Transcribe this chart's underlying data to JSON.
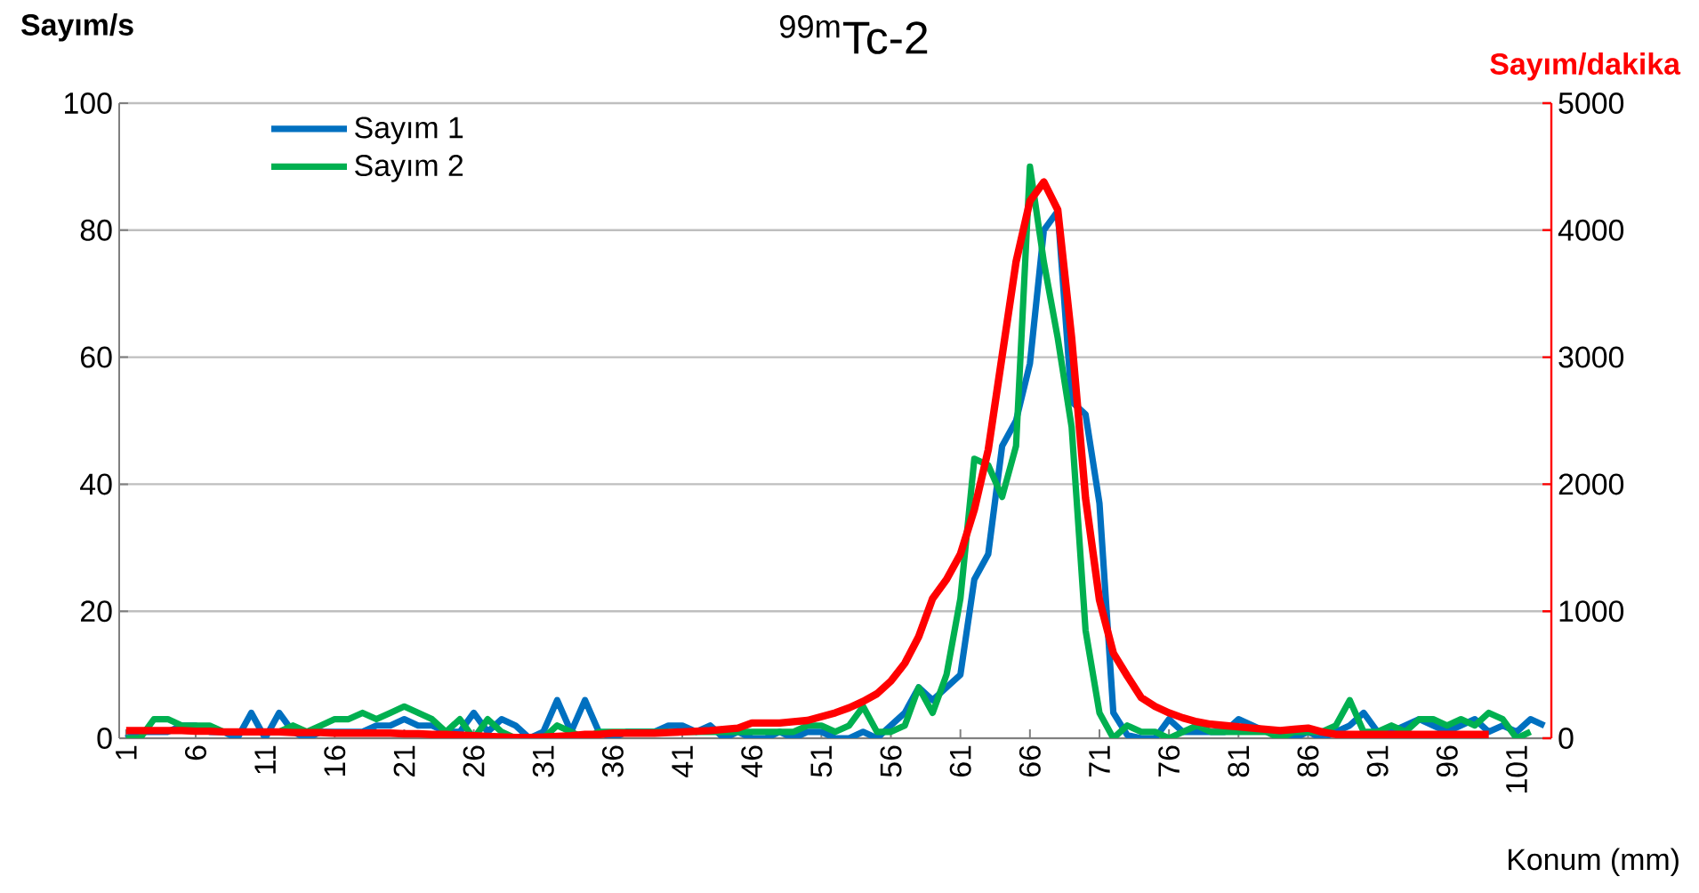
{
  "chart_data": {
    "type": "line",
    "title": "$^{99m}$Tc-2",
    "xlabel": "Konum (mm)",
    "ylabel": "Sayım/s",
    "y2label": "Sayım/dakika",
    "x": [
      1,
      2,
      3,
      4,
      5,
      6,
      7,
      8,
      9,
      10,
      11,
      12,
      13,
      14,
      15,
      16,
      17,
      18,
      19,
      20,
      21,
      22,
      23,
      24,
      25,
      26,
      27,
      28,
      29,
      30,
      31,
      32,
      33,
      34,
      35,
      36,
      37,
      38,
      39,
      40,
      41,
      42,
      43,
      44,
      45,
      46,
      47,
      48,
      49,
      50,
      51,
      52,
      53,
      54,
      55,
      56,
      57,
      58,
      59,
      60,
      61,
      62,
      63,
      64,
      65,
      66,
      67,
      68,
      69,
      70,
      71,
      72,
      73,
      74,
      75,
      76,
      77,
      78,
      79,
      80,
      81,
      82,
      83,
      84,
      85,
      86,
      87,
      88,
      89,
      90,
      91,
      92,
      93,
      94,
      95,
      96,
      97,
      98,
      99,
      100,
      101,
      102,
      103
    ],
    "xlim": [
      0.5,
      103.5
    ],
    "xticks": [
      1,
      6,
      11,
      16,
      21,
      26,
      31,
      36,
      41,
      46,
      51,
      56,
      61,
      66,
      71,
      76,
      81,
      86,
      91,
      96,
      101
    ],
    "ylim": [
      0,
      100
    ],
    "yticks": [
      0,
      20,
      40,
      60,
      80,
      100
    ],
    "y2lim": [
      0,
      5000
    ],
    "y2ticks": [
      0,
      1000,
      2000,
      3000,
      4000,
      5000
    ],
    "grid": "y",
    "legend": "top left",
    "marker": "none",
    "line_style": "solid",
    "series": [
      {
        "name": "Sayım 1",
        "color": "#0070c0",
        "values": [
          0,
          1,
          1,
          1,
          2,
          2,
          1,
          1,
          0,
          4,
          0,
          4,
          1,
          0,
          1,
          1,
          1,
          1,
          2,
          2,
          3,
          2,
          2,
          1,
          1,
          4,
          1,
          3,
          2,
          0,
          1,
          6,
          1,
          6,
          1,
          0,
          1,
          1,
          1,
          2,
          2,
          1,
          2,
          0,
          1,
          0,
          0,
          1,
          0,
          1,
          1,
          0,
          0,
          1,
          0,
          2,
          4,
          8,
          6,
          8,
          10,
          25,
          29,
          46,
          50,
          59,
          80,
          83,
          53,
          51,
          37,
          4,
          0.5,
          0,
          0,
          3,
          1,
          1,
          1,
          1,
          3,
          2,
          1,
          1,
          0,
          1,
          0,
          1,
          2,
          4,
          1,
          1,
          2,
          3,
          2,
          1,
          2,
          3,
          1,
          2,
          1,
          3,
          2
        ]
      },
      {
        "name": "Sayım 2",
        "color": "#00b050",
        "values": [
          0,
          0,
          3,
          3,
          2,
          2,
          2,
          1,
          1,
          1,
          1,
          1,
          2,
          1,
          2,
          3,
          3,
          4,
          3,
          4,
          5,
          4,
          3,
          1,
          3,
          0,
          3,
          1,
          0,
          0,
          0,
          2,
          1,
          0,
          1,
          1,
          1,
          1,
          1,
          1,
          1,
          1,
          1,
          1,
          1,
          1,
          1,
          1,
          1,
          2,
          2,
          1,
          2,
          5,
          1,
          1,
          2,
          8,
          4,
          10,
          22,
          44,
          43,
          38,
          46,
          90,
          75,
          63,
          49,
          17,
          4,
          0,
          2,
          1,
          1,
          0,
          1,
          2,
          1,
          1,
          1,
          1,
          1,
          0,
          1,
          1,
          1,
          2,
          6,
          1,
          1,
          2,
          1,
          3,
          3,
          2,
          3,
          2,
          4,
          3,
          0,
          1,
          null
        ]
      },
      {
        "color": "#ff0000",
        "axis": "y2",
        "values": [
          60,
          60,
          60,
          60,
          60,
          55,
          55,
          50,
          50,
          50,
          50,
          50,
          45,
          45,
          45,
          40,
          40,
          40,
          40,
          40,
          35,
          35,
          30,
          30,
          25,
          20,
          15,
          10,
          5,
          5,
          10,
          15,
          20,
          30,
          30,
          40,
          40,
          40,
          40,
          45,
          50,
          55,
          60,
          70,
          80,
          120,
          120,
          120,
          130,
          140,
          170,
          200,
          240,
          290,
          350,
          450,
          590,
          800,
          1100,
          1250,
          1450,
          1800,
          2270,
          3010,
          3750,
          4230,
          4380,
          4160,
          3150,
          1890,
          1090,
          670,
          490,
          320,
          250,
          200,
          160,
          130,
          110,
          100,
          90,
          80,
          70,
          60,
          70,
          80,
          50,
          30,
          30,
          30,
          30,
          30,
          30,
          30,
          30,
          30,
          30,
          30,
          30,
          null,
          null,
          null,
          null
        ]
      }
    ]
  }
}
